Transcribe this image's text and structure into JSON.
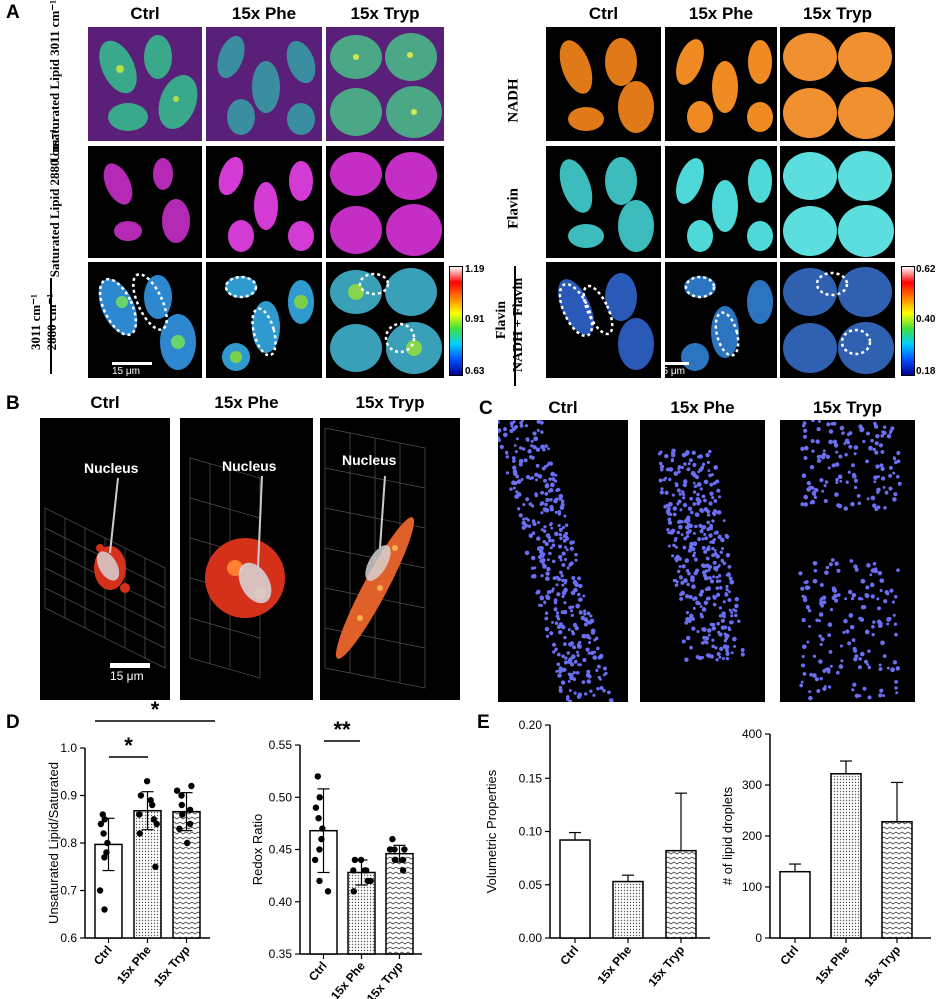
{
  "panelA": {
    "label": "A",
    "left_columns": [
      "Ctrl",
      "15x Phe",
      "15x Tryp"
    ],
    "right_columns": [
      "Ctrl",
      "15x Phe",
      "15x Tryp"
    ],
    "left_rows": [
      "Unsaturated Lipid 3011 cm⁻¹",
      "Saturated Lipid 2880 cm⁻¹"
    ],
    "ratio_top": "3011 cm⁻¹",
    "ratio_bottom": "2880 cm⁻¹",
    "right_rows": [
      "NADH",
      "Flavin"
    ],
    "redox_top": "Flavin",
    "redox_bottom": "NADH + Flavin",
    "left_cbar": {
      "max": "1.19",
      "mid": "0.91",
      "min": "0.63"
    },
    "right_cbar": {
      "max": "0.62",
      "mid": "0.40",
      "min": "0.18"
    },
    "scale_left": "15 μm",
    "scale_right": "15 μm",
    "colors": {
      "lipid_bg": "#5a1f78",
      "lipid_cell": "#3aa88a",
      "sat_cell": "#d43ad4",
      "nadh": "#f08a22",
      "flavin": "#4fd8d8"
    }
  },
  "panelB": {
    "label": "B",
    "columns": [
      "Ctrl",
      "15x Phe",
      "15x Tryp"
    ],
    "nucleus": "Nucleus",
    "scale": "15 μm"
  },
  "panelC": {
    "label": "C",
    "columns": [
      "Ctrl",
      "15x Phe",
      "15x Tryp"
    ]
  },
  "panelD": {
    "label": "D",
    "sig1": "*",
    "sig2": "*",
    "sig3": "**"
  },
  "panelE": {
    "label": "E"
  },
  "chart_data": [
    {
      "type": "bar",
      "categories": [
        "Ctrl",
        "15x Phe",
        "15x Tryp"
      ],
      "values": [
        0.797,
        0.868,
        0.866
      ],
      "errors": [
        0.055,
        0.04,
        0.04
      ],
      "points": [
        [
          0.86,
          0.85,
          0.84,
          0.82,
          0.8,
          0.78,
          0.77,
          0.7,
          0.66
        ],
        [
          0.93,
          0.9,
          0.89,
          0.88,
          0.86,
          0.85,
          0.84,
          0.82,
          0.75
        ],
        [
          0.92,
          0.91,
          0.9,
          0.88,
          0.87,
          0.86,
          0.84,
          0.83,
          0.8
        ]
      ],
      "ylabel": "Unsaturated Lipid/Saturated",
      "ylim": [
        0.6,
        1.0
      ],
      "yticks": [
        "0.6",
        "0.7",
        "0.8",
        "0.9",
        "1.0"
      ]
    },
    {
      "type": "bar",
      "categories": [
        "Ctrl",
        "15x Phe",
        "15x Tryp"
      ],
      "values": [
        0.468,
        0.428,
        0.446
      ],
      "errors": [
        0.04,
        0.012,
        0.008
      ],
      "points": [
        [
          0.52,
          0.5,
          0.49,
          0.48,
          0.47,
          0.46,
          0.45,
          0.44,
          0.42,
          0.41
        ],
        [
          0.44,
          0.44,
          0.43,
          0.43,
          0.43,
          0.42,
          0.42,
          0.41
        ],
        [
          0.45,
          0.45,
          0.45,
          0.44,
          0.44,
          0.44,
          0.43,
          0.46
        ]
      ],
      "ylabel": "Redox Ratio",
      "ylim": [
        0.35,
        0.55
      ],
      "yticks": [
        "0.35",
        "0.40",
        "0.45",
        "0.50",
        "0.55"
      ]
    },
    {
      "type": "bar",
      "categories": [
        "Ctrl",
        "15x Phe",
        "15x Tryp"
      ],
      "values": [
        0.092,
        0.053,
        0.082
      ],
      "errors": [
        0.007,
        0.006,
        0.054
      ],
      "ylabel": "Volumetric Properties",
      "ylim": [
        0,
        0.2
      ],
      "yticks": [
        "0.00",
        "0.05",
        "0.10",
        "0.15",
        "0.20"
      ]
    },
    {
      "type": "bar",
      "categories": [
        "Ctrl",
        "15x Phe",
        "15x Tryp"
      ],
      "values": [
        130,
        322,
        228
      ],
      "errors": [
        15,
        25,
        77
      ],
      "ylabel": "# of lipid droplets",
      "ylim": [
        0,
        400
      ],
      "yticks": [
        "0",
        "100",
        "200",
        "300",
        "400"
      ]
    }
  ]
}
